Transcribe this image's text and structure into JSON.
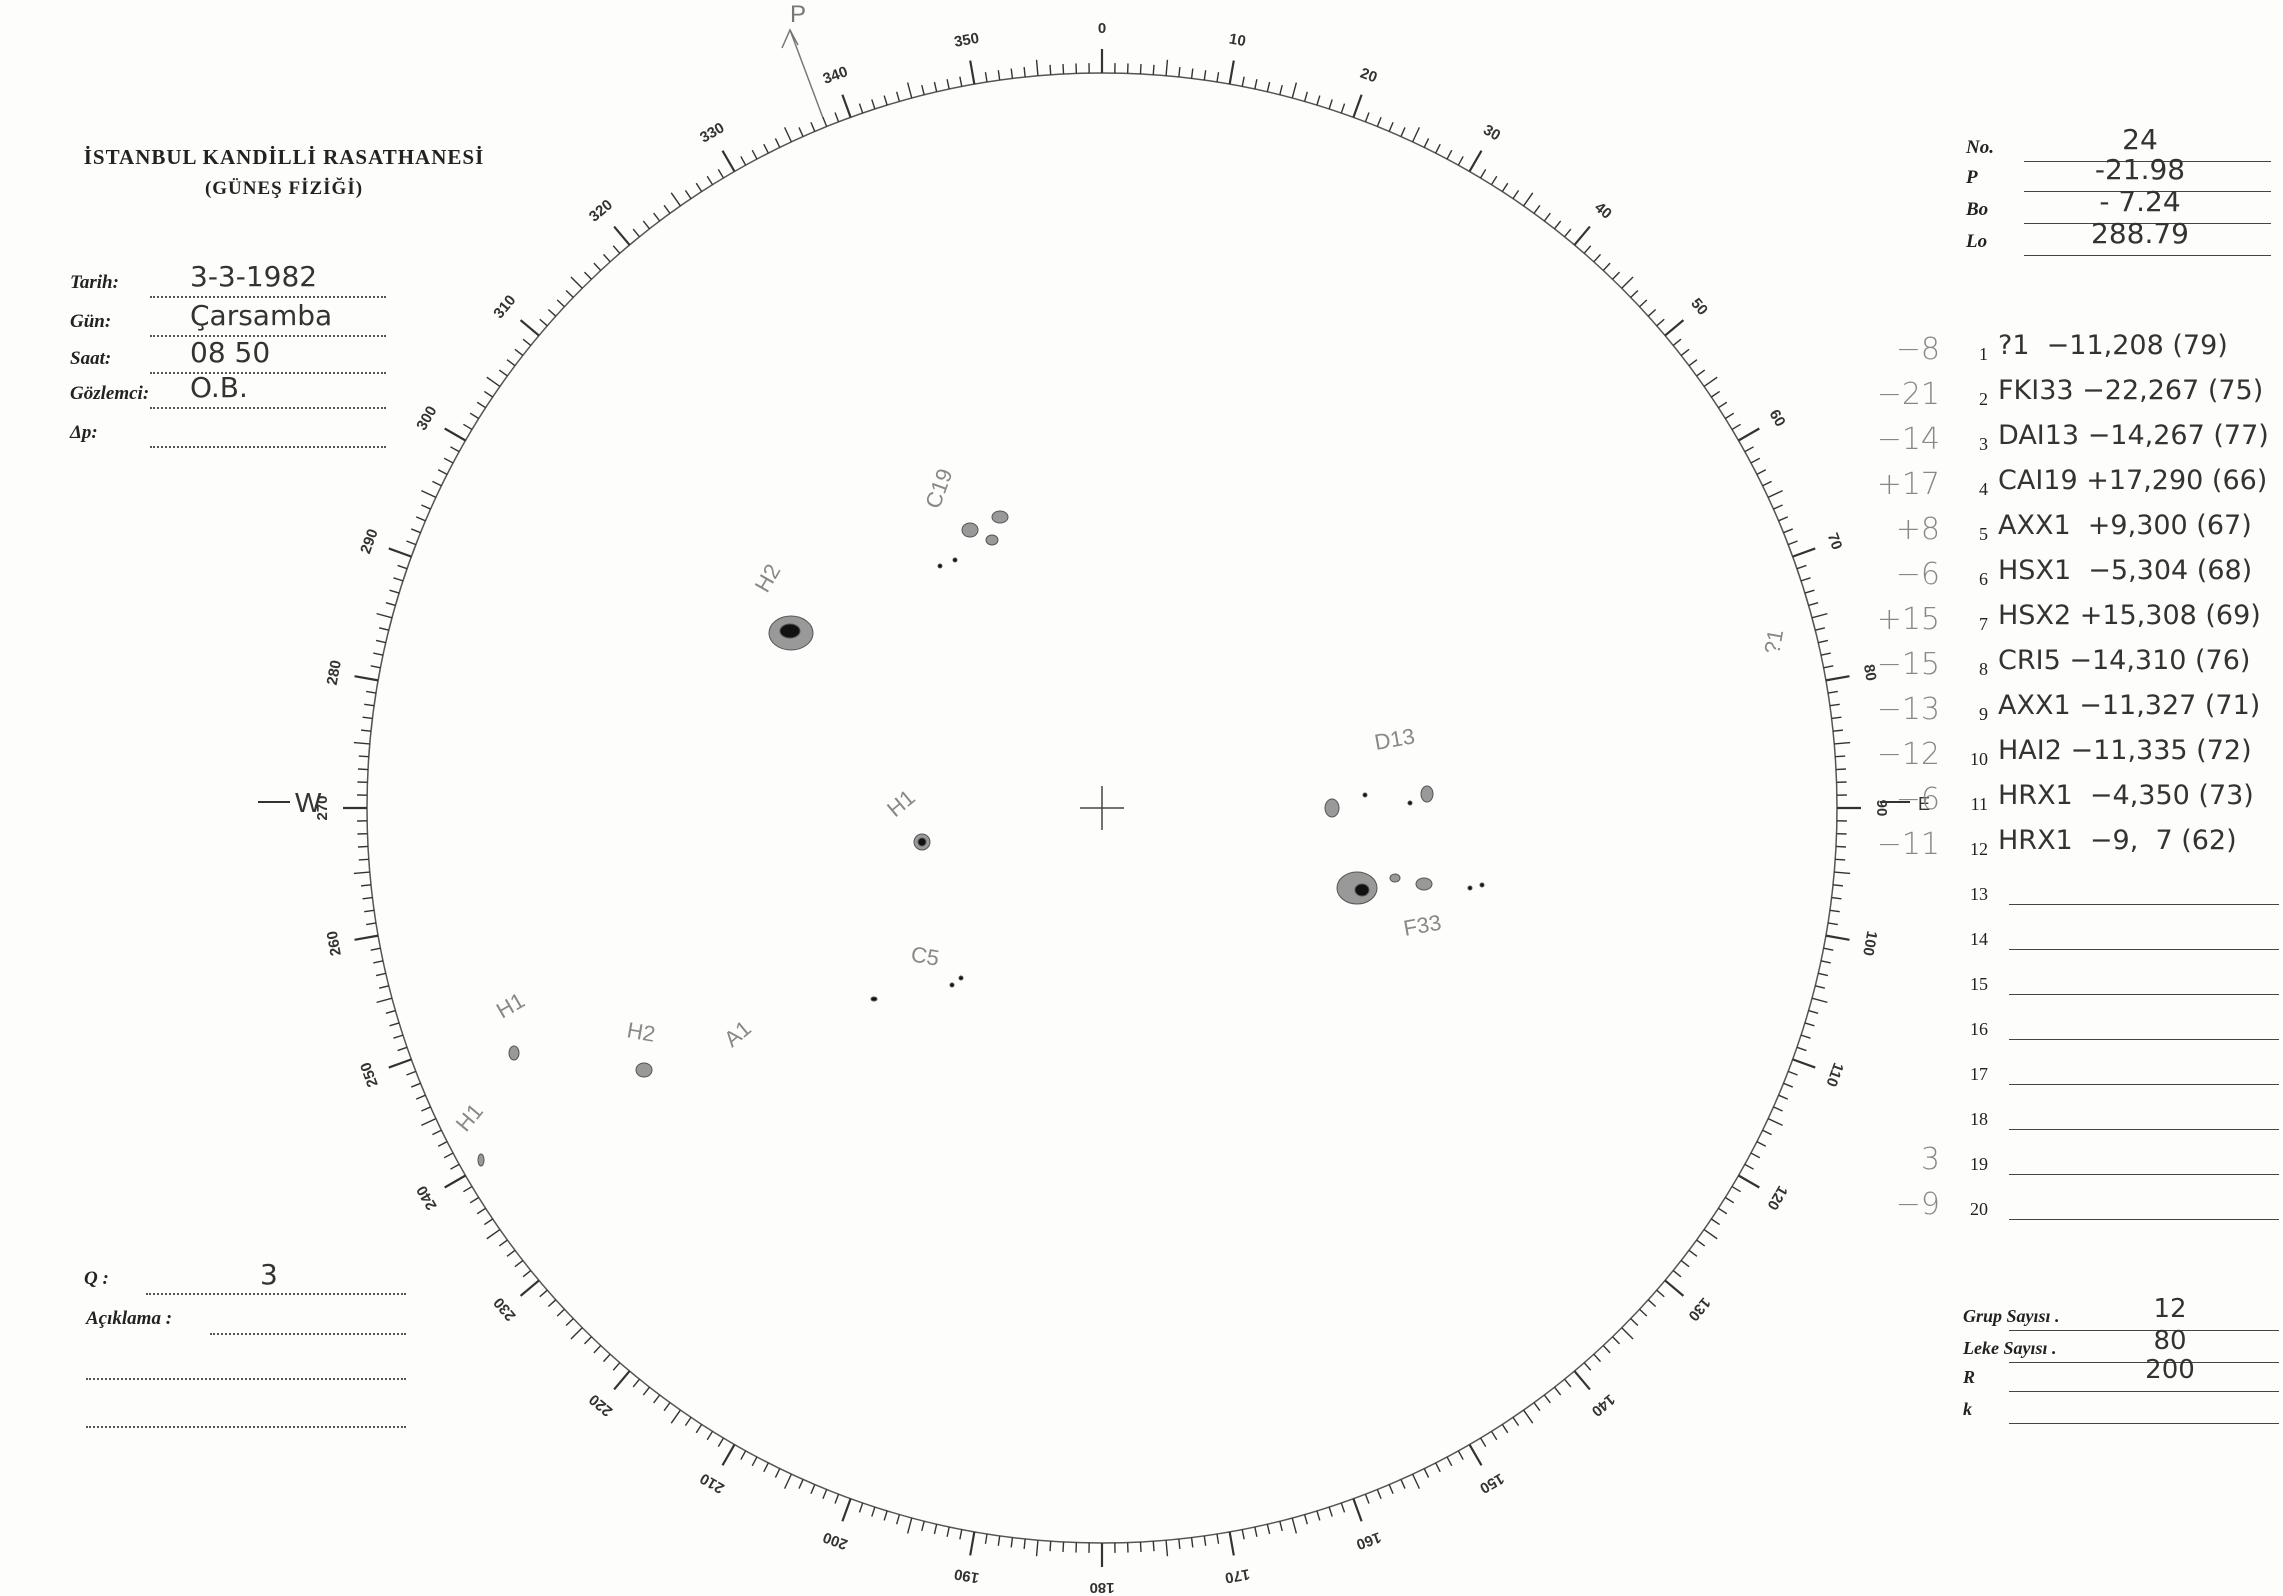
{
  "header": {
    "title": "İSTANBUL KANDİLLİ RASATHANESİ",
    "subtitle": "(GÜNEŞ FİZİĞİ)"
  },
  "observation": {
    "fields": [
      {
        "label": "Tarih:",
        "value": "3-3-1982"
      },
      {
        "label": "Gün:",
        "value": "Çarsamba"
      },
      {
        "label": "Saat:",
        "value": "08 50"
      },
      {
        "label": "Gözlemci:",
        "value": "O.B."
      },
      {
        "label": "Δp:"
      }
    ]
  },
  "parameters": [
    {
      "label": "No.",
      "value": "24"
    },
    {
      "label": "P",
      "value": "-21.98"
    },
    {
      "label": "Bo",
      "value": "- 7.24"
    },
    {
      "label": "Lo",
      "value": "288.79"
    }
  ],
  "groups": [
    {
      "no": 1,
      "note": "−8",
      "entry": "?1  −11,208 (79)"
    },
    {
      "no": 2,
      "note": "−21",
      "entry": "FKI33 −22,267 (75)"
    },
    {
      "no": 3,
      "note": "−14",
      "entry": "DAI13 −14,267 (77)"
    },
    {
      "no": 4,
      "note": "+17",
      "entry": "CAI19 +17,290 (66)"
    },
    {
      "no": 5,
      "note": "+8",
      "entry": "AXX1  +9,300 (67)"
    },
    {
      "no": 6,
      "note": "−6",
      "entry": "HSX1  −5,304 (68)"
    },
    {
      "no": 7,
      "note": "+15",
      "entry": "HSX2 +15,308 (69)"
    },
    {
      "no": 8,
      "note": "−15",
      "entry": "CRI5 −14,310 (76)"
    },
    {
      "no": 9,
      "note": "−13",
      "entry": "AXX1 −11,327 (71)"
    },
    {
      "no": 10,
      "note": "−12",
      "entry": "HAI2 −11,335 (72)"
    },
    {
      "no": 11,
      "note": "−6",
      "entry": "HRX1  −4,350 (73)"
    },
    {
      "no": 12,
      "note": "−11",
      "entry": "HRX1  −9,  7 (62)"
    },
    {
      "no": 13
    },
    {
      "no": 14
    },
    {
      "no": 15
    },
    {
      "no": 16
    },
    {
      "no": 17
    },
    {
      "no": 18
    },
    {
      "no": 19,
      "note": "3"
    },
    {
      "no": 20,
      "note": "−9"
    }
  ],
  "remarks": {
    "q_label": "Q :",
    "q_value": "3",
    "comment_label": "Açıklama :"
  },
  "summary": [
    {
      "label": "Grup Sayısı .",
      "value": "12"
    },
    {
      "label": "Leke Sayısı .",
      "value": "80"
    },
    {
      "label": "R",
      "value": "200"
    },
    {
      "label": "k"
    }
  ],
  "dial": {
    "labels": [
      0,
      10,
      20,
      30,
      40,
      50,
      60,
      70,
      80,
      90,
      100,
      110,
      120,
      130,
      140,
      150,
      160,
      170,
      180,
      190,
      200,
      210,
      220,
      230,
      240,
      250,
      260,
      270,
      280,
      290,
      300,
      310,
      320,
      330,
      340,
      350
    ],
    "west": "W",
    "east": "E",
    "pole": "P"
  },
  "spots": [
    {
      "label": "H2"
    },
    {
      "label": "C19"
    },
    {
      "label": "H1"
    },
    {
      "label": "D13"
    },
    {
      "label": "F33"
    },
    {
      "label": "C5"
    },
    {
      "label": "A1"
    },
    {
      "label": "H1"
    },
    {
      "label": "H2"
    },
    {
      "label": "H1"
    },
    {
      "label": "?1"
    }
  ]
}
